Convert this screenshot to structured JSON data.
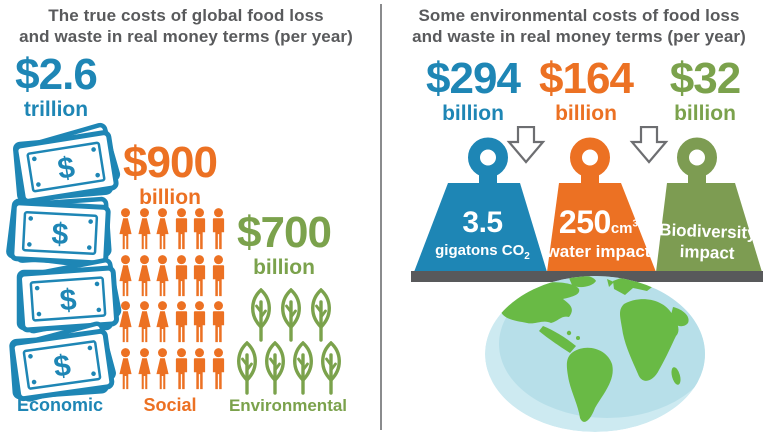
{
  "left_panel": {
    "title_line1": "The true costs of global food loss",
    "title_line2": "and waste in real money terms (per year)",
    "economic": {
      "amount": "$2.6",
      "unit": "trillion",
      "label": "Economic"
    },
    "social": {
      "amount": "$900",
      "unit": "billion",
      "label": "Social"
    },
    "environmental": {
      "amount": "$700",
      "unit": "billion",
      "label": "Environmental"
    }
  },
  "right_panel": {
    "title_line1": "Some environmental costs of food loss",
    "title_line2": "and waste in real money terms (per year)",
    "co2": {
      "amount": "$294",
      "unit": "billion",
      "value": "3.5",
      "value_unit": "gigatons CO",
      "value_unit_sub": "2"
    },
    "water": {
      "amount": "$164",
      "unit": "billion",
      "value": "250",
      "value_unit": "cm",
      "value_unit_sup": "3",
      "impact_label": "water impact"
    },
    "biodiversity": {
      "amount": "$32",
      "unit": "billion",
      "impact_line1": "Biodiversity",
      "impact_line2": "impact"
    }
  },
  "icons": {
    "dollar_sign": "$",
    "bill_stacks": "money-bill-stack-icon",
    "people": "person-icon",
    "trees": "tree-icon",
    "weights": "kettlebell-weight-icon",
    "arrows": "down-arrow-icon",
    "globe": "globe-icon"
  },
  "icon_counts": {
    "bill_stacks": 4,
    "people_rows": 4,
    "people_per_row": 6,
    "people_total": 24,
    "trees_row1": 3,
    "trees_row2": 4
  },
  "colors": {
    "blue": "#1e86b5",
    "orange": "#ec7123",
    "green_text": "#7ba24c",
    "green_weight": "#7d9c52",
    "platform_gray": "#58595b",
    "title_gray": "#595a5c",
    "globe_water": "#b7dfe9",
    "globe_land": "#69ba45"
  },
  "chart_data": [
    {
      "type": "table",
      "title": "The true costs of global food loss and waste in real money terms (per year)",
      "categories": [
        "Economic",
        "Social",
        "Environmental"
      ],
      "values": [
        "$2.6 trillion",
        "$900 billion",
        "$700 billion"
      ],
      "values_usd_billions": [
        2600,
        900,
        700
      ],
      "icons": [
        "money bills",
        "people pictogram (24 figures)",
        "trees pictogram (7 trees)"
      ]
    },
    {
      "type": "table",
      "title": "Some environmental costs of food loss and waste in real money terms (per year)",
      "categories": [
        "3.5 gigatons CO2",
        "250cm3 water impact",
        "Biodiversity impact"
      ],
      "values": [
        "$294 billion",
        "$164 billion",
        "$32 billion"
      ],
      "values_usd_billions": [
        294,
        164,
        32
      ],
      "icons": [
        "blue weight",
        "orange weight",
        "green weight on platform over globe"
      ]
    }
  ]
}
